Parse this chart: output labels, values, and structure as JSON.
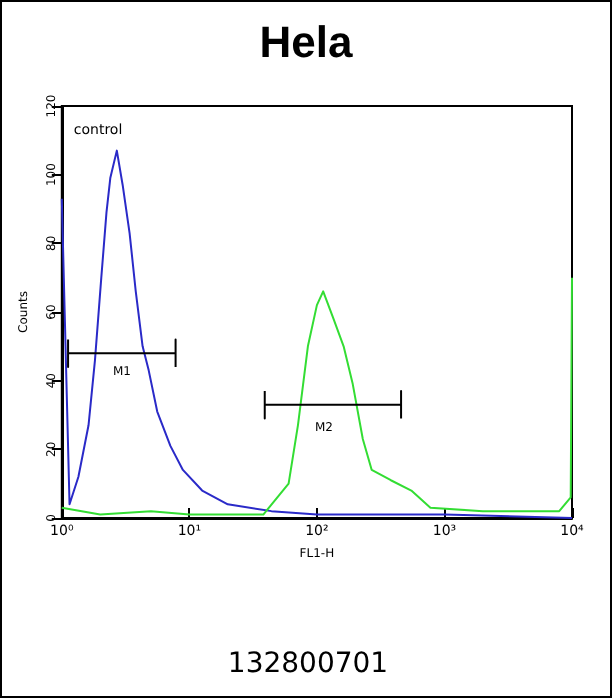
{
  "chart_data": {
    "type": "line",
    "title": "Hela",
    "xlabel": "FL1-H",
    "ylabel": "Counts",
    "log": "x",
    "xlim": [
      1,
      10000
    ],
    "xticks": [
      {
        "value": 1,
        "label": "10⁰"
      },
      {
        "value": 10,
        "label": "10¹"
      },
      {
        "value": 100,
        "label": "10²"
      },
      {
        "value": 1000,
        "label": "10³"
      },
      {
        "value": 10000,
        "label": "10⁴"
      }
    ],
    "ylim": [
      0,
      120
    ],
    "yticks": [
      0,
      20,
      40,
      60,
      80,
      100,
      120
    ],
    "grid": false,
    "marker": "none",
    "line_style": "solid",
    "series": [
      {
        "color": "#2a2ac8",
        "x": [
          1,
          1.15,
          1.35,
          1.62,
          1.82,
          2.04,
          2.24,
          2.4,
          2.7,
          3.0,
          3.4,
          3.8,
          4.3,
          4.8,
          5.6,
          7.1,
          8.9,
          12.6,
          20,
          44,
          100,
          1000,
          10000
        ],
        "values": [
          93,
          4,
          12,
          27,
          46,
          70,
          89,
          99,
          107,
          97,
          83,
          66,
          50,
          43,
          31,
          21,
          14,
          8,
          4,
          2,
          1,
          1,
          0
        ]
      },
      {
        "color": "#33dd33",
        "x": [
          1,
          2,
          5,
          10,
          20,
          38,
          60,
          71,
          85,
          100,
          112,
          135,
          162,
          191,
          229,
          269,
          380,
          550,
          776,
          2000,
          7940,
          9770,
          10000
        ],
        "values": [
          3,
          1,
          2,
          1,
          1,
          1,
          10,
          27,
          50,
          62,
          66,
          58,
          50,
          39,
          23,
          14,
          11,
          8,
          3,
          2,
          2,
          6,
          70
        ]
      },
      {
        "type": "line",
        "color": "#000000",
        "x": [
          1.12,
          1.12,
          1.12,
          7.8,
          7.8,
          7.8
        ],
        "values": [
          52,
          44,
          48,
          48,
          52,
          44
        ]
      },
      {
        "type": "line",
        "color": "#000000",
        "x": [
          39,
          39,
          39,
          457,
          457,
          457
        ],
        "values": [
          37,
          29,
          33,
          33,
          37,
          29
        ]
      }
    ],
    "annotations": [
      "control",
      "M1",
      "M2",
      "132800701"
    ]
  }
}
